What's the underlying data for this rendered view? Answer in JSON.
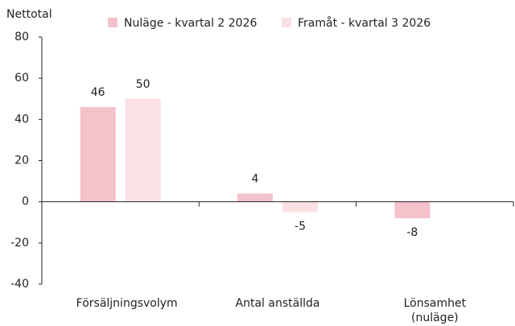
{
  "chart_data": {
    "type": "bar",
    "y_label": "Nettotal",
    "categories": [
      "Försäljningsvolym",
      "Antal anställda",
      "Lönsamhet (nuläge)"
    ],
    "series": [
      {
        "name": "Nuläge - kvartal 2 2026",
        "color": "#f4c2cb",
        "values": [
          46,
          4,
          -8
        ]
      },
      {
        "name": "Framåt - kvartal 3 2026",
        "color": "#fbe0e4",
        "values": [
          50,
          -5,
          null
        ]
      }
    ],
    "ylim": [
      -40,
      80
    ],
    "yticks": [
      -40,
      -20,
      0,
      20,
      40,
      60,
      80
    ],
    "legend": "top"
  }
}
